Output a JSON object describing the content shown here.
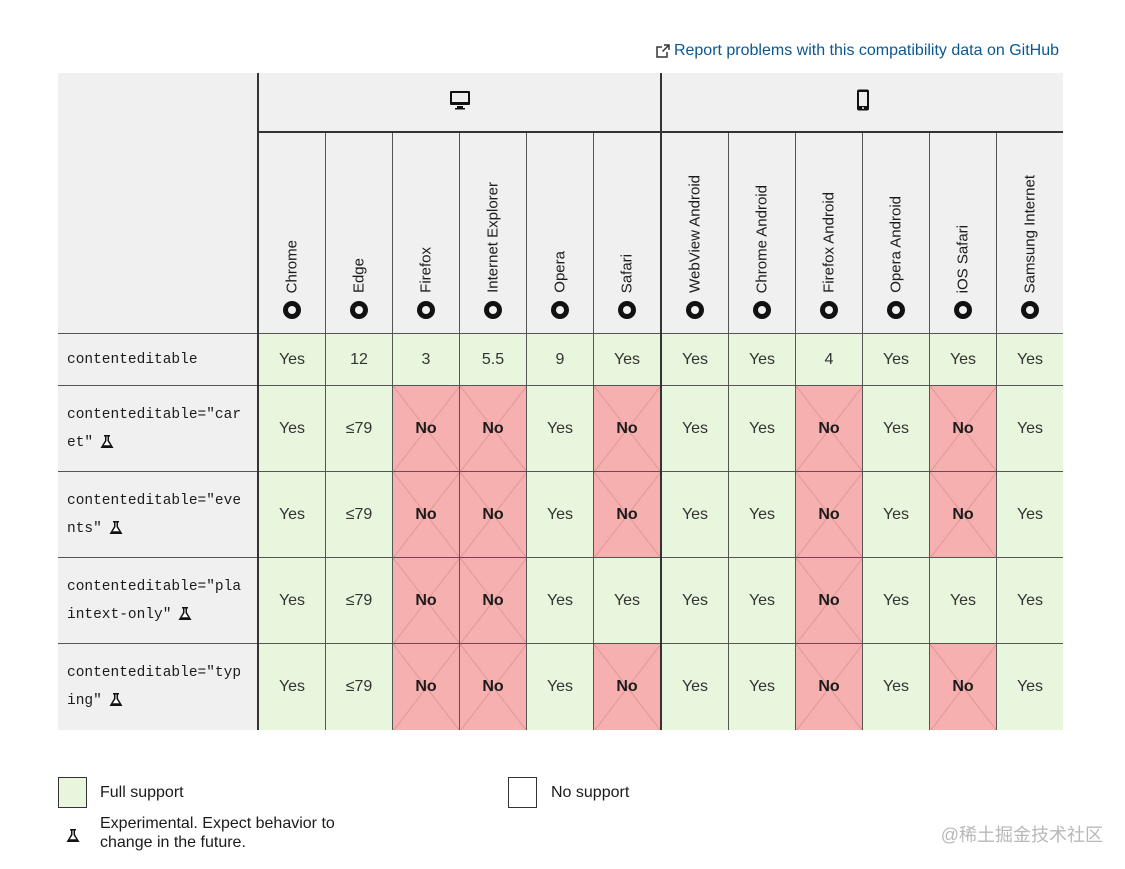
{
  "report_link": "Report problems with this compatibility data on GitHub",
  "platforms": [
    {
      "name": "desktop-icon",
      "span": 6
    },
    {
      "name": "mobile-icon",
      "span": 6
    }
  ],
  "browsers": [
    {
      "label": "Chrome",
      "icon": "chrome-icon"
    },
    {
      "label": "Edge",
      "icon": "edge-icon"
    },
    {
      "label": "Firefox",
      "icon": "firefox-icon"
    },
    {
      "label": "Internet Explorer",
      "icon": "ie-icon"
    },
    {
      "label": "Opera",
      "icon": "opera-icon"
    },
    {
      "label": "Safari",
      "icon": "safari-icon"
    },
    {
      "label": "WebView Android",
      "icon": "android-icon"
    },
    {
      "label": "Chrome Android",
      "icon": "chrome-icon"
    },
    {
      "label": "Firefox Android",
      "icon": "firefox-icon"
    },
    {
      "label": "Opera Android",
      "icon": "opera-icon"
    },
    {
      "label": "iOS Safari",
      "icon": "safari-icon"
    },
    {
      "label": "Samsung Internet",
      "icon": "samsung-icon"
    }
  ],
  "rows": [
    {
      "feature": "contenteditable",
      "experimental": false,
      "cells": [
        "Yes",
        "12",
        "3",
        "5.5",
        "9",
        "Yes",
        "Yes",
        "Yes",
        "4",
        "Yes",
        "Yes",
        "Yes"
      ],
      "status": [
        "y",
        "y",
        "y",
        "y",
        "y",
        "y",
        "y",
        "y",
        "y",
        "y",
        "y",
        "y"
      ]
    },
    {
      "feature": "contenteditable=\"caret\"",
      "experimental": true,
      "cells": [
        "Yes",
        "≤79",
        "No",
        "No",
        "Yes",
        "No",
        "Yes",
        "Yes",
        "No",
        "Yes",
        "No",
        "Yes"
      ],
      "status": [
        "y",
        "y",
        "n",
        "n",
        "y",
        "n",
        "y",
        "y",
        "n",
        "y",
        "n",
        "y"
      ]
    },
    {
      "feature": "contenteditable=\"events\"",
      "experimental": true,
      "cells": [
        "Yes",
        "≤79",
        "No",
        "No",
        "Yes",
        "No",
        "Yes",
        "Yes",
        "No",
        "Yes",
        "No",
        "Yes"
      ],
      "status": [
        "y",
        "y",
        "n",
        "n",
        "y",
        "n",
        "y",
        "y",
        "n",
        "y",
        "n",
        "y"
      ]
    },
    {
      "feature": "contenteditable=\"plaintext-only\"",
      "experimental": true,
      "cells": [
        "Yes",
        "≤79",
        "No",
        "No",
        "Yes",
        "Yes",
        "Yes",
        "Yes",
        "No",
        "Yes",
        "Yes",
        "Yes"
      ],
      "status": [
        "y",
        "y",
        "n",
        "n",
        "y",
        "y",
        "y",
        "y",
        "n",
        "y",
        "y",
        "y"
      ]
    },
    {
      "feature": "contenteditable=\"typing\"",
      "experimental": true,
      "cells": [
        "Yes",
        "≤79",
        "No",
        "No",
        "Yes",
        "No",
        "Yes",
        "Yes",
        "No",
        "Yes",
        "No",
        "Yes"
      ],
      "status": [
        "y",
        "y",
        "n",
        "n",
        "y",
        "n",
        "y",
        "y",
        "n",
        "y",
        "n",
        "y"
      ]
    }
  ],
  "legend": {
    "full_support": "Full support",
    "no_support": "No support",
    "experimental": "Experimental. Expect behavior to change in the future."
  },
  "colors": {
    "yes": "#e7f6dc",
    "no": "#f7b0b0"
  },
  "watermark": "@稀土掘金技术社区"
}
